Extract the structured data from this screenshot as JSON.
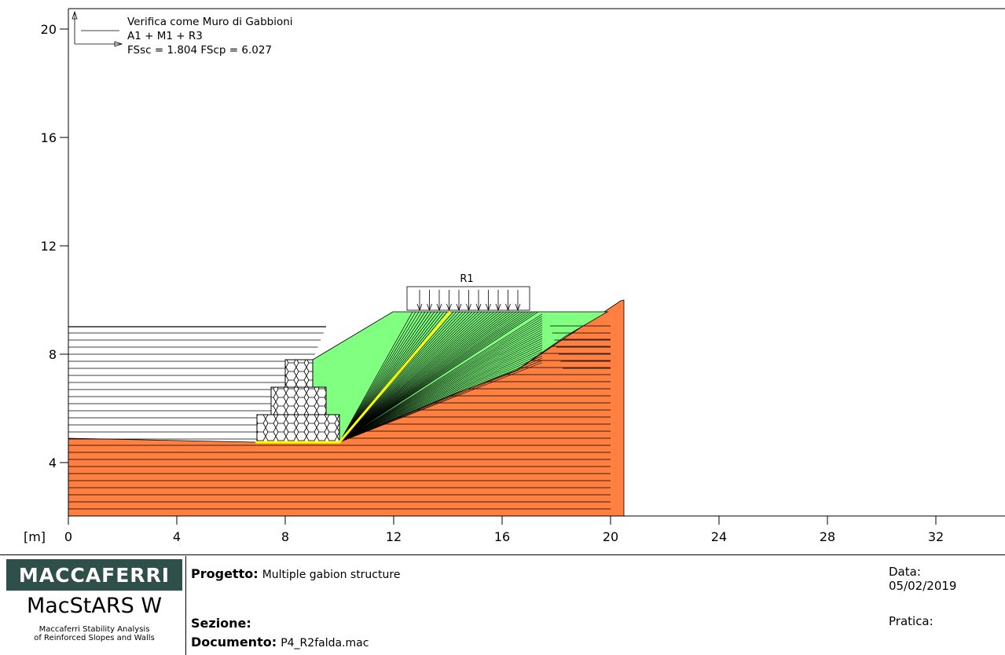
{
  "annotation": {
    "title": "Verifica come Muro di Gabbioni",
    "combo": "A1 + M1 + R3",
    "fs": "FSsc = 1.804 FScp = 6.027"
  },
  "load_label": "R1",
  "axis": {
    "unit": "[m]",
    "y_ticks": [
      "4",
      "8",
      "12",
      "16",
      "20"
    ],
    "x_ticks": [
      "0",
      "4",
      "8",
      "12",
      "16",
      "20",
      "24",
      "28",
      "32"
    ]
  },
  "colors": {
    "foundation": "#ff8040",
    "backfill": "#80ff80",
    "slip_surface": "#ffff00"
  },
  "footer": {
    "brand": "MACCAFERRI",
    "product": "MacStARS W",
    "product_sub_1": "Maccaferri Stability Analysis",
    "product_sub_2": "of Reinforced Slopes and Walls",
    "progetto_label": "Progetto:",
    "progetto_value": "Multiple gabion structure",
    "sezione_label": "Sezione:",
    "documento_label": "Documento:",
    "documento_value": "P4_R2falda.mac",
    "data_label": "Data:",
    "data_value": "05/02/2019",
    "pratica_label": "Pratica:"
  }
}
